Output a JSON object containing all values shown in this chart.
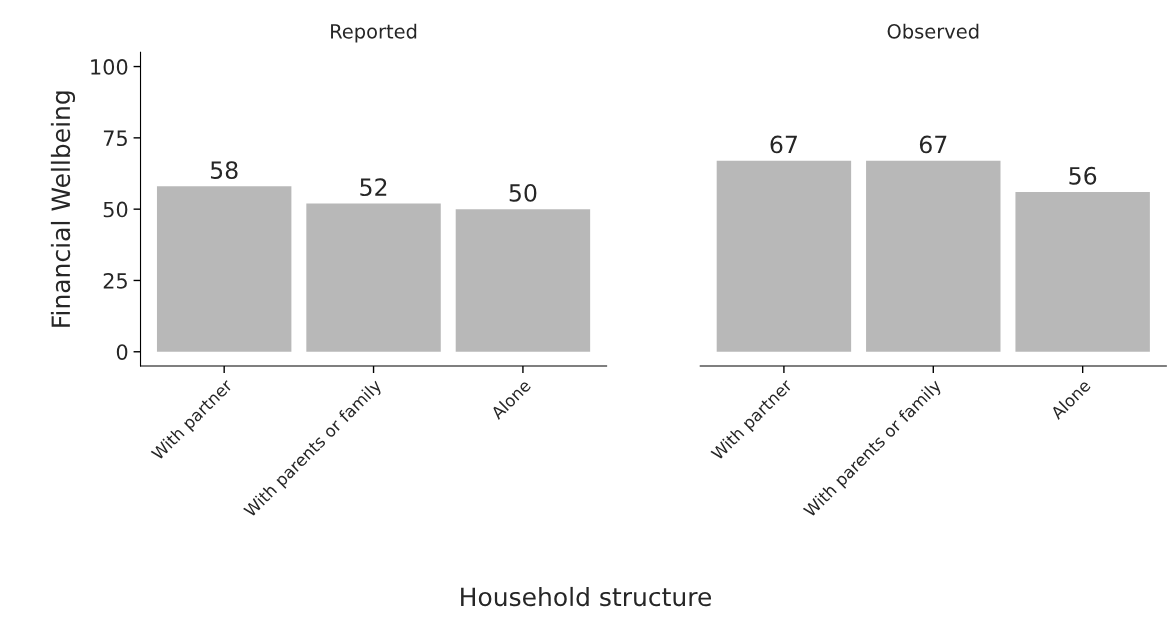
{
  "chart_data": [
    {
      "type": "bar",
      "title": "Reported",
      "ylabel": "Financial Wellbeing",
      "xlabel": "Household structure",
      "categories": [
        "With partner",
        "With parents or family",
        "Alone"
      ],
      "values": [
        58,
        52,
        50
      ],
      "color": "#b8b8b8",
      "ylim": [
        -5,
        105
      ],
      "yticks": [
        0,
        25,
        50,
        75,
        100
      ],
      "data_labels": true,
      "grid": false,
      "legend": false
    },
    {
      "type": "bar",
      "title": "Observed",
      "categories": [
        "With partner",
        "With parents or family",
        "Alone"
      ],
      "values": [
        67,
        67,
        56
      ],
      "color": "#b8b8b8",
      "data_labels": true,
      "grid": false,
      "legend": false,
      "tick_labels": "x"
    }
  ]
}
